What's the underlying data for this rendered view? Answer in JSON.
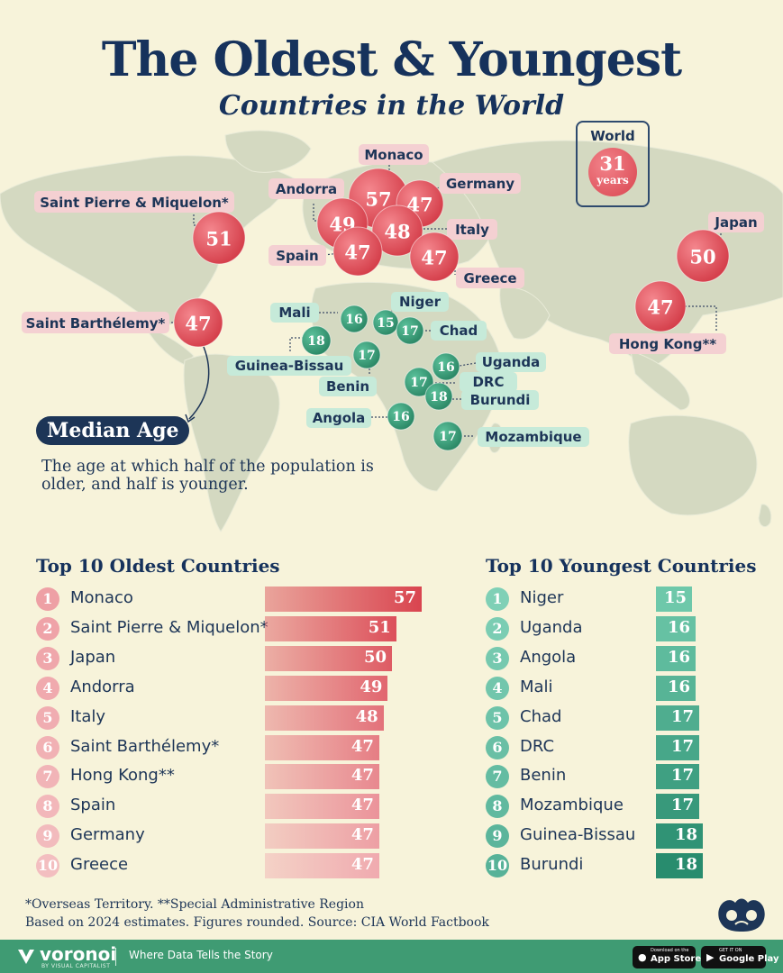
{
  "title": "The Oldest & Youngest",
  "subtitle": "Countries in the World",
  "world": {
    "label": "World",
    "value": "31",
    "unit": "years"
  },
  "median": {
    "title": "Median Age",
    "description": "The age at which half of the population is older, and half is younger."
  },
  "colors": {
    "old": "#d9444f",
    "old_light": "#f2b8bb",
    "young": "#2e8b6e",
    "young_light": "#7fd0b6",
    "navy": "#1d3557",
    "footer": "#3f9b73"
  },
  "chart_data": [
    {
      "type": "bar",
      "title": "Top 10 Oldest Countries",
      "categories": [
        "Monaco",
        "Saint Pierre & Miquelon*",
        "Japan",
        "Andorra",
        "Italy",
        "Saint Barthélemy*",
        "Hong Kong**",
        "Spain",
        "Germany",
        "Greece"
      ],
      "values": [
        57,
        51,
        50,
        49,
        48,
        47,
        47,
        47,
        47,
        47
      ],
      "ranks": [
        "1",
        "2",
        "3",
        "4",
        "5",
        "6",
        "7",
        "8",
        "9",
        "10"
      ]
    },
    {
      "type": "bar",
      "title": "Top 10 Youngest Countries",
      "categories": [
        "Niger",
        "Uganda",
        "Angola",
        "Mali",
        "Chad",
        "DRC",
        "Benin",
        "Mozambique",
        "Guinea-Bissau",
        "Burundi"
      ],
      "values": [
        15,
        16,
        16,
        16,
        17,
        17,
        17,
        17,
        18,
        18
      ],
      "ranks": [
        "1",
        "2",
        "3",
        "4",
        "5",
        "6",
        "7",
        "8",
        "9",
        "10"
      ]
    }
  ],
  "map_bubbles": [
    {
      "name": "Monaco",
      "value": 57,
      "group": "old"
    },
    {
      "name": "Germany",
      "value": 47,
      "group": "old"
    },
    {
      "name": "Andorra",
      "value": 49,
      "group": "old"
    },
    {
      "name": "Italy",
      "value": 48,
      "group": "old"
    },
    {
      "name": "Spain",
      "value": 47,
      "group": "old"
    },
    {
      "name": "Greece",
      "value": 47,
      "group": "old"
    },
    {
      "name": "Saint Pierre & Miquelon*",
      "value": 51,
      "group": "old"
    },
    {
      "name": "Japan",
      "value": 50,
      "group": "old"
    },
    {
      "name": "Hong Kong**",
      "value": 47,
      "group": "old"
    },
    {
      "name": "Saint Barthélemy*",
      "value": 47,
      "group": "old"
    },
    {
      "name": "Mali",
      "value": 16,
      "group": "young"
    },
    {
      "name": "Niger",
      "value": 15,
      "group": "young"
    },
    {
      "name": "Chad",
      "value": 17,
      "group": "young"
    },
    {
      "name": "Guinea-Bissau",
      "value": 18,
      "group": "young"
    },
    {
      "name": "Benin",
      "value": 17,
      "group": "young"
    },
    {
      "name": "Uganda",
      "value": 16,
      "group": "young"
    },
    {
      "name": "DRC",
      "value": 17,
      "group": "young"
    },
    {
      "name": "Burundi",
      "value": 18,
      "group": "young"
    },
    {
      "name": "Angola",
      "value": 16,
      "group": "young"
    },
    {
      "name": "Mozambique",
      "value": 17,
      "group": "young"
    }
  ],
  "footnotes": {
    "line1": "*Overseas Territory. **Special Administrative Region",
    "line2": "Based on 2024 estimates. Figures rounded. Source: CIA World Factbook"
  },
  "footer": {
    "brand": "voronoi",
    "brand_sub": "BY VISUAL CAPITALIST",
    "tagline": "Where Data Tells the Story",
    "appstore_small": "Download on the",
    "appstore_big": "App Store",
    "googleplay_small": "GET IT ON",
    "googleplay_big": "Google Play"
  }
}
